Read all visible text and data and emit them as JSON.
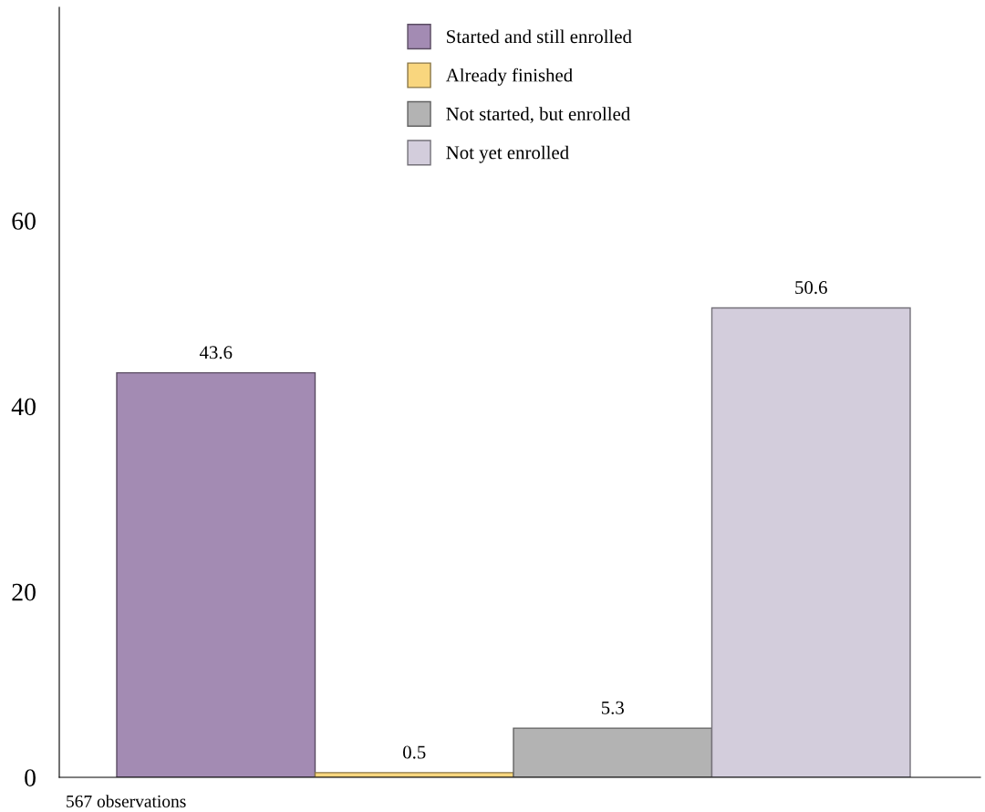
{
  "chart_data": {
    "type": "bar",
    "categories": [
      null
    ],
    "series": [
      {
        "name": "Started and still enrolled",
        "color": "#a38bb3",
        "values": [
          43.6
        ]
      },
      {
        "name": "Already finished",
        "color": "#f9d67e",
        "values": [
          0.5
        ]
      },
      {
        "name": "Not started, but enrolled",
        "color": "#b3b3b3",
        "values": [
          5.3
        ]
      },
      {
        "name": "Not yet enrolled",
        "color": "#d3cddc",
        "values": [
          50.6
        ]
      }
    ],
    "ylim": [
      0,
      83
    ],
    "yticks": [
      0,
      20,
      40,
      60
    ],
    "data_labels": true,
    "legend": "top",
    "grid": false,
    "annotations": [
      "567 observations"
    ]
  }
}
